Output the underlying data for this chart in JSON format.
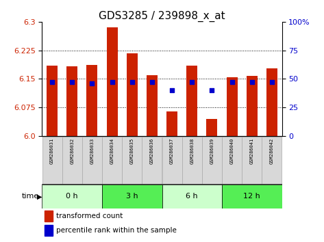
{
  "title": "GDS3285 / 239898_x_at",
  "samples": [
    "GSM286031",
    "GSM286032",
    "GSM286033",
    "GSM286034",
    "GSM286035",
    "GSM286036",
    "GSM286037",
    "GSM286038",
    "GSM286039",
    "GSM286040",
    "GSM286041",
    "GSM286042"
  ],
  "red_values": [
    6.185,
    6.183,
    6.187,
    6.285,
    6.218,
    6.16,
    6.065,
    6.185,
    6.045,
    6.155,
    6.158,
    6.178
  ],
  "blue_percentiles": [
    47,
    47,
    46,
    47,
    47,
    47,
    40,
    47,
    40,
    47,
    47,
    47
  ],
  "ylim_left": [
    6.0,
    6.3
  ],
  "ylim_right": [
    0,
    100
  ],
  "yticks_left": [
    6.0,
    6.075,
    6.15,
    6.225,
    6.3
  ],
  "yticks_right": [
    0,
    25,
    50,
    75,
    100
  ],
  "groups": [
    {
      "label": "0 h",
      "start": 0,
      "end": 3,
      "color": "#ccffcc"
    },
    {
      "label": "3 h",
      "start": 3,
      "end": 6,
      "color": "#55ee55"
    },
    {
      "label": "6 h",
      "start": 6,
      "end": 9,
      "color": "#ccffcc"
    },
    {
      "label": "12 h",
      "start": 9,
      "end": 12,
      "color": "#55ee55"
    }
  ],
  "bar_color": "#cc2200",
  "dot_color": "#0000cc",
  "bar_width": 0.55,
  "bg_color": "white",
  "tick_color_left": "#cc2200",
  "tick_color_right": "#0000cc",
  "title_fontsize": 11,
  "legend_red_label": "transformed count",
  "legend_blue_label": "percentile rank within the sample",
  "sample_box_color": "#d8d8d8",
  "sample_box_edge": "#aaaaaa"
}
